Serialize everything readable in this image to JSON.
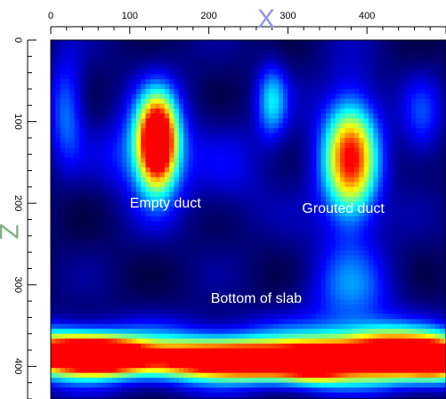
{
  "chart_data": {
    "type": "heatmap",
    "xlabel": "X",
    "ylabel": "Z",
    "xlim": [
      0,
      500
    ],
    "ylim": [
      0,
      440
    ],
    "x_ticks": [
      0,
      100,
      200,
      300,
      400
    ],
    "y_ticks": [
      0,
      100,
      200,
      300,
      400
    ],
    "colormap": [
      "#000033",
      "#00008f",
      "#0000ff",
      "#0080ff",
      "#00ffff",
      "#80ff80",
      "#ffff00",
      "#ff8000",
      "#ff0000"
    ],
    "annotations": [
      {
        "text": "Empty duct",
        "x": 145,
        "y": 205
      },
      {
        "text": "Grouted duct",
        "x": 370,
        "y": 212
      },
      {
        "text": "Bottom of slab",
        "x": 260,
        "y": 322
      }
    ],
    "features": [
      {
        "x": 135,
        "y": 125,
        "sx": 16,
        "sy": 36,
        "value": 1.0
      },
      {
        "x": 135,
        "y": 130,
        "sx": 28,
        "sy": 55,
        "value": 0.35
      },
      {
        "x": 380,
        "y": 145,
        "sx": 22,
        "sy": 48,
        "value": 0.65
      },
      {
        "x": 375,
        "y": 150,
        "sx": 34,
        "sy": 70,
        "value": 0.25
      },
      {
        "x": 20,
        "y": 385,
        "sx": 45,
        "sy": 18,
        "value": 0.9
      },
      {
        "x": 75,
        "y": 388,
        "sx": 35,
        "sy": 14,
        "value": 0.82
      },
      {
        "x": 195,
        "y": 392,
        "sx": 55,
        "sy": 15,
        "value": 0.8
      },
      {
        "x": 260,
        "y": 395,
        "sx": 35,
        "sy": 14,
        "value": 0.55
      },
      {
        "x": 330,
        "y": 396,
        "sx": 35,
        "sy": 16,
        "value": 0.92
      },
      {
        "x": 430,
        "y": 388,
        "sx": 50,
        "sy": 20,
        "value": 1.0
      },
      {
        "x": 490,
        "y": 392,
        "sx": 25,
        "sy": 16,
        "value": 0.7
      },
      {
        "x": 250,
        "y": 385,
        "sx": 280,
        "sy": 26,
        "value": 0.4
      },
      {
        "x": 280,
        "y": 75,
        "sx": 14,
        "sy": 34,
        "value": 0.35
      },
      {
        "x": 20,
        "y": 85,
        "sx": 16,
        "sy": 45,
        "value": 0.3
      },
      {
        "x": 380,
        "y": 310,
        "sx": 40,
        "sy": 40,
        "value": 0.25
      },
      {
        "x": 470,
        "y": 100,
        "sx": 18,
        "sy": 40,
        "value": 0.2
      },
      {
        "x": 100,
        "y": 140,
        "sx": 35,
        "sy": 35,
        "value": 0.15
      },
      {
        "x": 230,
        "y": 160,
        "sx": 40,
        "sy": 45,
        "value": 0.12
      }
    ]
  }
}
